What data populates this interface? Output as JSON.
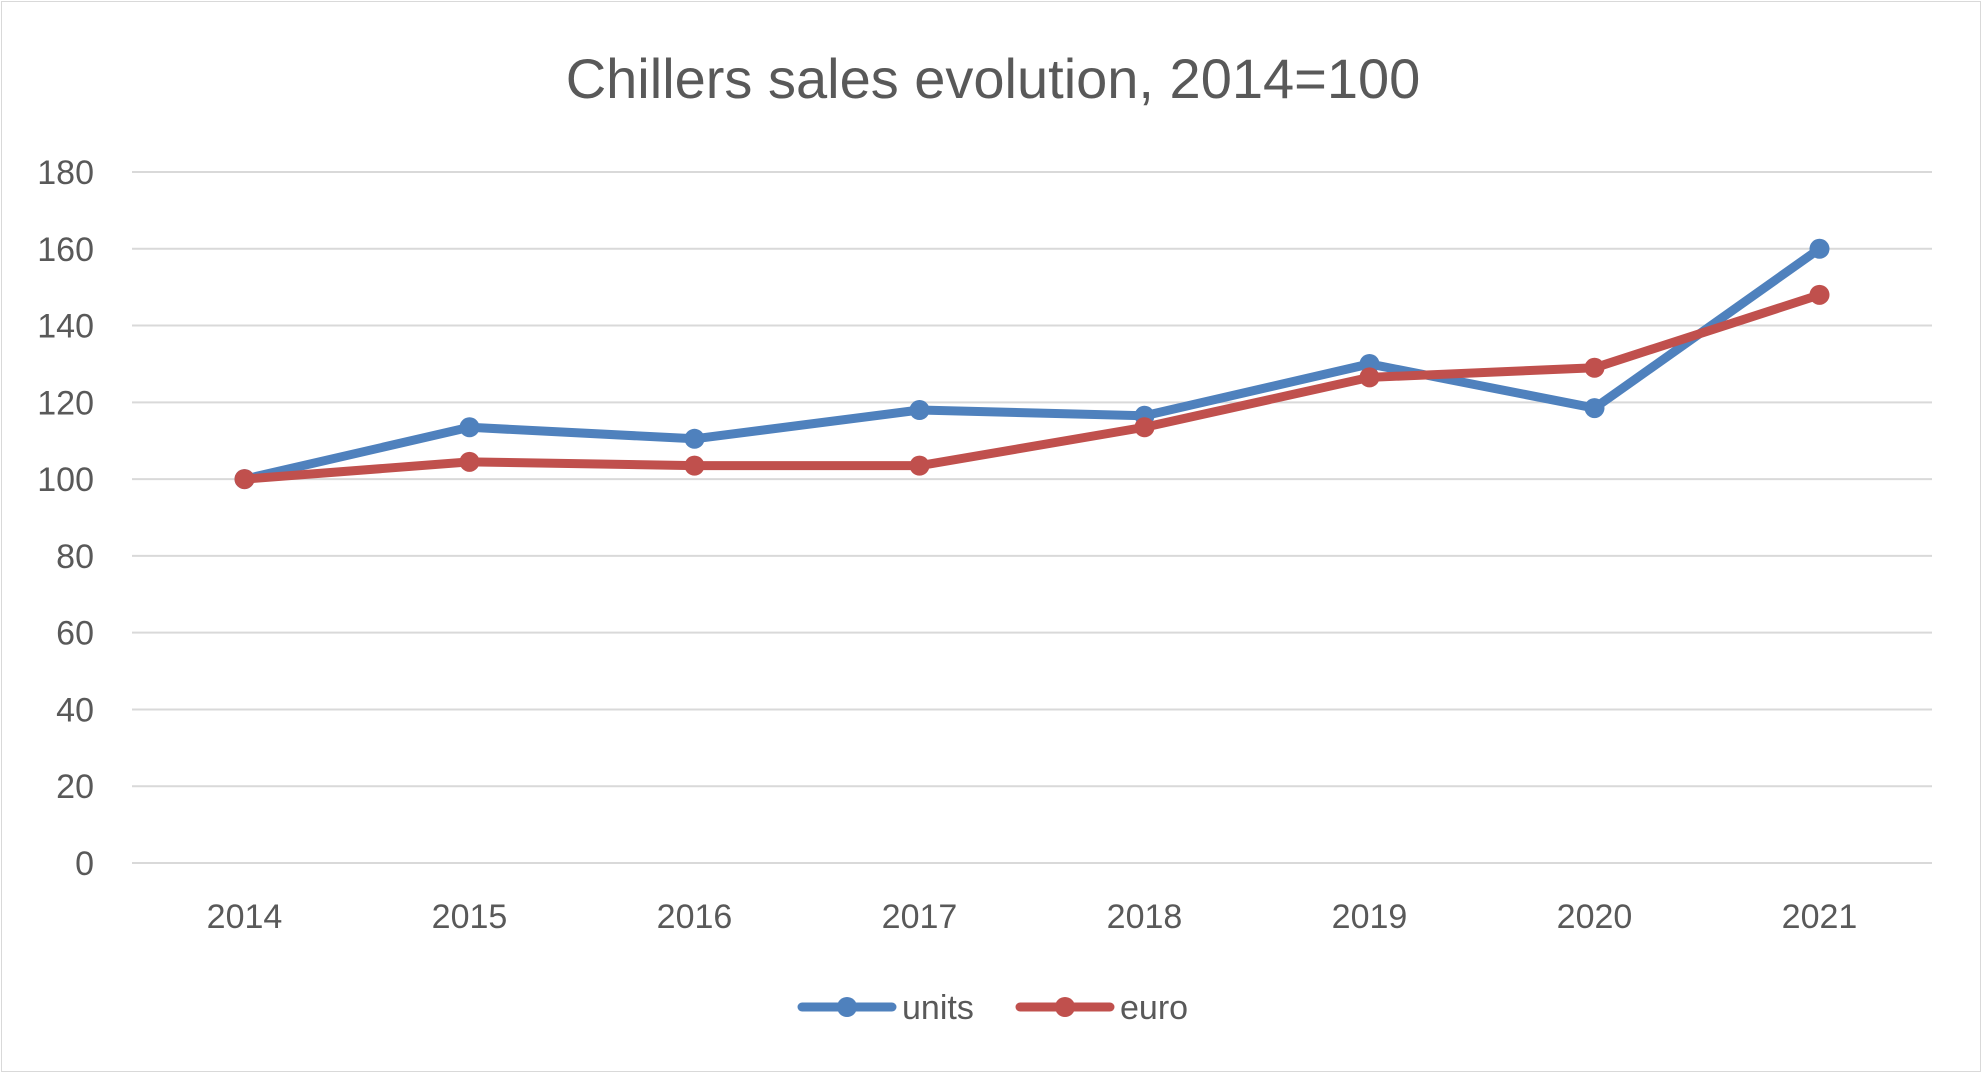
{
  "chart_data": {
    "type": "line",
    "title": "Chillers sales evolution, 2014=100",
    "xlabel": "",
    "ylabel": "",
    "categories": [
      "2014",
      "2015",
      "2016",
      "2017",
      "2018",
      "2019",
      "2020",
      "2021"
    ],
    "ylim": [
      0,
      180
    ],
    "yticks": [
      "0",
      "20",
      "40",
      "60",
      "80",
      "100",
      "120",
      "140",
      "160",
      "180"
    ],
    "grid": true,
    "legend": "bottom-center",
    "series": [
      {
        "name": "units",
        "color": "#4f81bd",
        "values": [
          100,
          113.5,
          110.5,
          118,
          116.5,
          130,
          118.5,
          160
        ]
      },
      {
        "name": "euro",
        "color": "#c0504d",
        "values": [
          100,
          104.5,
          103.5,
          103.5,
          113.5,
          126.5,
          129,
          148
        ]
      }
    ]
  }
}
